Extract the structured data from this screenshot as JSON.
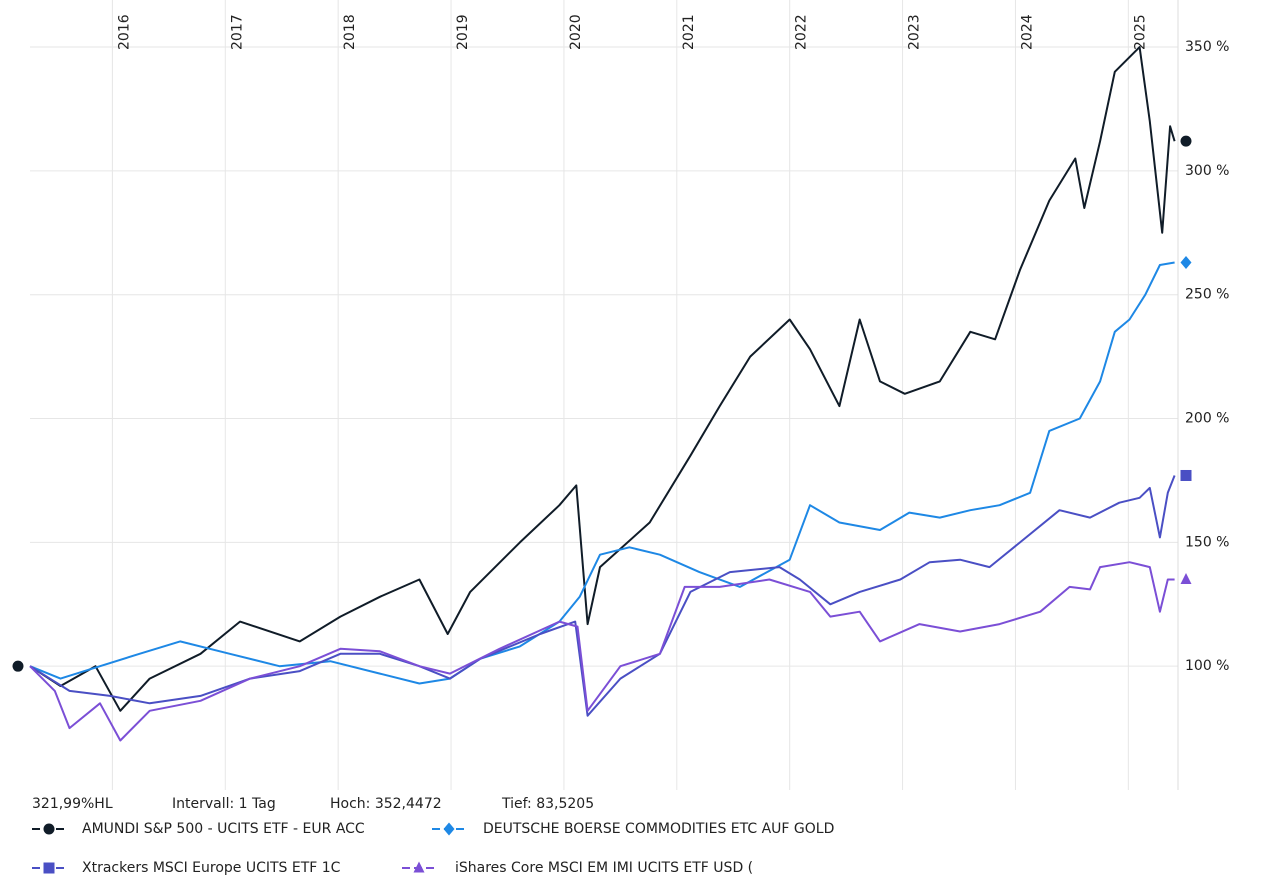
{
  "chart_data": {
    "type": "line",
    "xlim": [
      2015.27,
      2025.44
    ],
    "xticks": [
      2016,
      2017,
      2018,
      2019,
      2020,
      2021,
      2022,
      2023,
      2024,
      2025
    ],
    "ylim": [
      50,
      369
    ],
    "yticks": [
      {
        "value": 100,
        "label": "100 %"
      },
      {
        "value": 150,
        "label": "150 %"
      },
      {
        "value": 200,
        "label": "200 %"
      },
      {
        "value": 250,
        "label": "250 %"
      },
      {
        "value": 300,
        "label": "300 %"
      },
      {
        "value": 350,
        "label": "350 %"
      }
    ],
    "grid": true,
    "legend": "bottom",
    "info": [
      "321,99%HL",
      "Intervall: 1 Tag",
      "Hoch: 352,4472",
      "Tief: 83,5205"
    ],
    "series": [
      {
        "name": "AMUNDI S&P 500 - UCITS ETF - EUR ACC",
        "color": "#101c28",
        "marker": "circle",
        "x": [
          2015.27,
          2015.54,
          2015.85,
          2016.07,
          2016.33,
          2016.78,
          2017.13,
          2017.66,
          2018.02,
          2018.37,
          2018.72,
          2018.97,
          2019.17,
          2019.61,
          2019.96,
          2020.11,
          2020.21,
          2020.32,
          2020.76,
          2021.12,
          2021.38,
          2021.65,
          2022.0,
          2022.18,
          2022.44,
          2022.62,
          2022.8,
          2023.02,
          2023.33,
          2023.6,
          2023.82,
          2024.04,
          2024.3,
          2024.53,
          2024.61,
          2024.75,
          2024.88,
          2025.1,
          2025.19,
          2025.3,
          2025.37,
          2025.41
        ],
        "values": [
          100,
          92,
          100,
          82,
          95,
          105,
          118,
          110,
          120,
          128,
          135,
          113,
          130,
          150,
          165,
          173,
          117,
          140,
          158,
          185,
          205,
          225,
          240,
          228,
          205,
          240,
          215,
          210,
          215,
          235,
          232,
          260,
          288,
          305,
          285,
          312,
          340,
          350,
          320,
          275,
          318,
          312
        ]
      },
      {
        "name": "DEUTSCHE BOERSE COMMODITIES ETC AUF GOLD",
        "color": "#1e88e5",
        "marker": "diamond",
        "x": [
          2015.27,
          2015.54,
          2015.89,
          2016.24,
          2016.6,
          2017.04,
          2017.48,
          2017.93,
          2018.37,
          2018.72,
          2018.99,
          2019.26,
          2019.61,
          2019.96,
          2020.14,
          2020.32,
          2020.58,
          2020.85,
          2021.2,
          2021.56,
          2022.0,
          2022.18,
          2022.44,
          2022.8,
          2023.06,
          2023.33,
          2023.6,
          2023.86,
          2024.13,
          2024.3,
          2024.57,
          2024.75,
          2024.88,
          2025.01,
          2025.15,
          2025.28,
          2025.41
        ],
        "values": [
          100,
          95,
          100,
          105,
          110,
          105,
          100,
          102,
          97,
          93,
          95,
          103,
          108,
          118,
          128,
          145,
          148,
          145,
          138,
          132,
          143,
          165,
          158,
          155,
          162,
          160,
          163,
          165,
          170,
          195,
          200,
          215,
          235,
          240,
          250,
          262,
          263
        ]
      },
      {
        "name": "Xtrackers MSCI Europe UCITS ETF 1C",
        "color": "#4a4fc4",
        "marker": "square",
        "x": [
          2015.27,
          2015.62,
          2015.98,
          2016.33,
          2016.78,
          2017.22,
          2017.66,
          2018.02,
          2018.37,
          2018.72,
          2018.99,
          2019.26,
          2019.79,
          2020.1,
          2020.21,
          2020.5,
          2020.85,
          2021.12,
          2021.47,
          2021.91,
          2022.09,
          2022.36,
          2022.62,
          2022.98,
          2023.24,
          2023.51,
          2023.77,
          2024.04,
          2024.39,
          2024.66,
          2024.92,
          2025.1,
          2025.19,
          2025.28,
          2025.35,
          2025.41
        ],
        "values": [
          100,
          90,
          88,
          85,
          88,
          95,
          98,
          105,
          105,
          100,
          95,
          103,
          113,
          118,
          80,
          95,
          105,
          130,
          138,
          140,
          135,
          125,
          130,
          135,
          142,
          143,
          140,
          150,
          163,
          160,
          166,
          168,
          172,
          152,
          170,
          177
        ]
      },
      {
        "name": "iShares Core MSCI EM IMI UCITS ETF USD (",
        "color": "#7b4fd6",
        "marker": "triangle",
        "x": [
          2015.27,
          2015.49,
          2015.62,
          2015.89,
          2016.07,
          2016.33,
          2016.78,
          2017.22,
          2017.66,
          2018.02,
          2018.37,
          2018.72,
          2018.99,
          2019.43,
          2019.96,
          2020.12,
          2020.21,
          2020.5,
          2020.85,
          2021.07,
          2021.38,
          2021.82,
          2022.18,
          2022.36,
          2022.62,
          2022.8,
          2023.15,
          2023.51,
          2023.86,
          2024.22,
          2024.48,
          2024.66,
          2024.75,
          2025.01,
          2025.19,
          2025.28,
          2025.35,
          2025.41
        ],
        "values": [
          100,
          90,
          75,
          85,
          70,
          82,
          86,
          95,
          100,
          107,
          106,
          100,
          97,
          107,
          118,
          116,
          82,
          100,
          105,
          132,
          132,
          135,
          130,
          120,
          122,
          110,
          117,
          114,
          117,
          122,
          132,
          131,
          140,
          142,
          140,
          122,
          135,
          135
        ]
      }
    ]
  }
}
